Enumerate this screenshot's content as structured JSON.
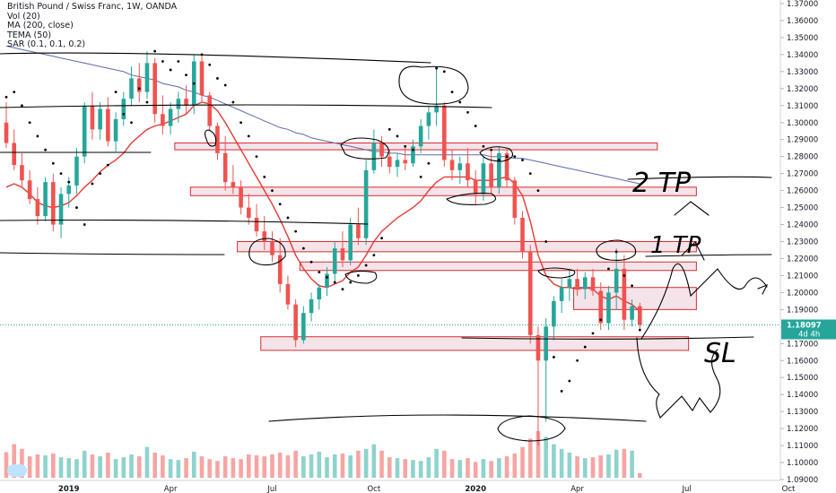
{
  "legend": {
    "title": "British Pound / Swiss Franc, 1W, OANDA",
    "vol": "Vol (20)",
    "ma": "MA (200, close)",
    "tema": "TEMA (50)",
    "sar": "SAR (0.1, 0.1, 0.2)"
  },
  "price_tag": {
    "value": "1.18097",
    "countdown": "4d 4h"
  },
  "annotations": {
    "tp2": "2 TP",
    "tp1": "1 TP",
    "sl": "SL"
  },
  "colors": {
    "up": "#26a69a",
    "down": "#ef5350",
    "vol_up": "#8ed3cc",
    "vol_down": "#f6a5a3",
    "ma": "#5b6bab",
    "tema": "#e53935",
    "zone_fill": "#f5e3ea",
    "zone_stroke": "#d32f2f",
    "price_tag": "#26a69a",
    "ink": "#000000"
  },
  "chart_data": {
    "type": "candlestick",
    "symbol": "GBPCHF",
    "timeframe": "1W",
    "y_axis": {
      "min": 1.09,
      "max": 1.37,
      "ticks": [
        "1.09000",
        "1.10000",
        "1.11000",
        "1.12000",
        "1.13000",
        "1.14000",
        "1.15000",
        "1.16000",
        "1.17000",
        "1.18000",
        "1.19000",
        "1.20000",
        "1.21000",
        "1.22000",
        "1.23000",
        "1.24000",
        "1.25000",
        "1.26000",
        "1.27000",
        "1.28000",
        "1.29000",
        "1.30000",
        "1.31000",
        "1.32000",
        "1.33000",
        "1.34000",
        "1.35000",
        "1.36000",
        "1.37000"
      ]
    },
    "x_axis": {
      "labels": [
        {
          "text": "2019",
          "bold": true,
          "index": 8
        },
        {
          "text": "Apr",
          "bold": false,
          "index": 21
        },
        {
          "text": "Jul",
          "bold": false,
          "index": 34
        },
        {
          "text": "Oct",
          "bold": false,
          "index": 47
        },
        {
          "text": "2020",
          "bold": true,
          "index": 60
        },
        {
          "text": "Apr",
          "bold": false,
          "index": 73
        },
        {
          "text": "Jul",
          "bold": false,
          "index": 87
        },
        {
          "text": "Oct",
          "bold": false,
          "index": 100
        }
      ]
    },
    "last_price": 1.18097,
    "candles": [
      [
        1.3,
        1.312,
        1.285,
        1.288
      ],
      [
        1.288,
        1.296,
        1.272,
        1.275
      ],
      [
        1.275,
        1.282,
        1.262,
        1.266
      ],
      [
        1.266,
        1.272,
        1.252,
        1.255
      ],
      [
        1.255,
        1.262,
        1.24,
        1.245
      ],
      [
        1.245,
        1.268,
        1.242,
        1.265
      ],
      [
        1.265,
        1.27,
        1.236,
        1.24
      ],
      [
        1.24,
        1.262,
        1.232,
        1.258
      ],
      [
        1.258,
        1.268,
        1.25,
        1.263
      ],
      [
        1.263,
        1.285,
        1.258,
        1.28
      ],
      [
        1.28,
        1.312,
        1.276,
        1.31
      ],
      [
        1.31,
        1.318,
        1.29,
        1.296
      ],
      [
        1.296,
        1.312,
        1.29,
        1.308
      ],
      [
        1.308,
        1.315,
        1.286,
        1.289
      ],
      [
        1.289,
        1.306,
        1.283,
        1.302
      ],
      [
        1.302,
        1.318,
        1.298,
        1.314
      ],
      [
        1.314,
        1.333,
        1.31,
        1.326
      ],
      [
        1.326,
        1.335,
        1.312,
        1.318
      ],
      [
        1.318,
        1.342,
        1.314,
        1.335
      ],
      [
        1.335,
        1.338,
        1.3,
        1.305
      ],
      [
        1.305,
        1.316,
        1.293,
        1.298
      ],
      [
        1.298,
        1.312,
        1.293,
        1.308
      ],
      [
        1.308,
        1.318,
        1.3,
        1.314
      ],
      [
        1.314,
        1.322,
        1.305,
        1.31
      ],
      [
        1.31,
        1.34,
        1.305,
        1.336
      ],
      [
        1.336,
        1.34,
        1.312,
        1.316
      ],
      [
        1.316,
        1.318,
        1.295,
        1.298
      ],
      [
        1.298,
        1.3,
        1.278,
        1.282
      ],
      [
        1.282,
        1.292,
        1.26,
        1.265
      ],
      [
        1.265,
        1.275,
        1.258,
        1.262
      ],
      [
        1.262,
        1.266,
        1.246,
        1.25
      ],
      [
        1.25,
        1.258,
        1.24,
        1.244
      ],
      [
        1.244,
        1.252,
        1.233,
        1.236
      ],
      [
        1.236,
        1.245,
        1.225,
        1.23
      ],
      [
        1.23,
        1.236,
        1.218,
        1.222
      ],
      [
        1.222,
        1.232,
        1.2,
        1.205
      ],
      [
        1.205,
        1.21,
        1.19,
        1.193
      ],
      [
        1.193,
        1.196,
        1.168,
        1.172
      ],
      [
        1.172,
        1.192,
        1.17,
        1.188
      ],
      [
        1.188,
        1.2,
        1.183,
        1.196
      ],
      [
        1.196,
        1.205,
        1.19,
        1.203
      ],
      [
        1.203,
        1.215,
        1.198,
        1.211
      ],
      [
        1.211,
        1.23,
        1.206,
        1.226
      ],
      [
        1.226,
        1.236,
        1.215,
        1.219
      ],
      [
        1.219,
        1.244,
        1.216,
        1.24
      ],
      [
        1.24,
        1.25,
        1.228,
        1.232
      ],
      [
        1.232,
        1.278,
        1.228,
        1.272
      ],
      [
        1.272,
        1.296,
        1.27,
        1.288
      ],
      [
        1.288,
        1.292,
        1.274,
        1.28
      ],
      [
        1.28,
        1.284,
        1.27,
        1.274
      ],
      [
        1.274,
        1.282,
        1.268,
        1.278
      ],
      [
        1.278,
        1.286,
        1.272,
        1.276
      ],
      [
        1.276,
        1.29,
        1.274,
        1.286
      ],
      [
        1.286,
        1.302,
        1.282,
        1.298
      ],
      [
        1.298,
        1.31,
        1.29,
        1.306
      ],
      [
        1.306,
        1.332,
        1.298,
        1.31
      ],
      [
        1.31,
        1.312,
        1.274,
        1.278
      ],
      [
        1.278,
        1.284,
        1.266,
        1.272
      ],
      [
        1.272,
        1.28,
        1.264,
        1.276
      ],
      [
        1.276,
        1.285,
        1.262,
        1.266
      ],
      [
        1.266,
        1.272,
        1.252,
        1.258
      ],
      [
        1.258,
        1.28,
        1.254,
        1.276
      ],
      [
        1.276,
        1.284,
        1.258,
        1.262
      ],
      [
        1.262,
        1.286,
        1.258,
        1.282
      ],
      [
        1.282,
        1.284,
        1.262,
        1.266
      ],
      [
        1.266,
        1.268,
        1.24,
        1.244
      ],
      [
        1.244,
        1.248,
        1.22,
        1.224
      ],
      [
        1.224,
        1.228,
        1.17,
        1.175
      ],
      [
        1.175,
        1.18,
        1.11,
        1.16
      ],
      [
        1.16,
        1.185,
        1.124,
        1.18
      ],
      [
        1.18,
        1.198,
        1.172,
        1.195
      ],
      [
        1.195,
        1.208,
        1.188,
        1.203
      ],
      [
        1.203,
        1.214,
        1.195,
        1.208
      ],
      [
        1.208,
        1.214,
        1.198,
        1.202
      ],
      [
        1.202,
        1.212,
        1.196,
        1.209
      ],
      [
        1.209,
        1.214,
        1.198,
        1.201
      ],
      [
        1.201,
        1.206,
        1.178,
        1.182
      ],
      [
        1.182,
        1.204,
        1.178,
        1.2
      ],
      [
        1.2,
        1.226,
        1.19,
        1.214
      ],
      [
        1.214,
        1.222,
        1.178,
        1.184
      ],
      [
        1.184,
        1.196,
        1.18,
        1.192
      ],
      [
        1.192,
        1.194,
        1.178,
        1.181
      ]
    ],
    "volume_up": [
      false,
      false,
      false,
      false,
      false,
      true,
      false,
      true,
      true,
      true,
      true,
      false,
      true,
      false,
      true,
      true,
      true,
      false,
      true,
      false,
      false,
      true,
      true,
      false,
      true,
      false,
      false,
      false,
      false,
      false,
      false,
      false,
      false,
      false,
      false,
      false,
      false,
      false,
      true,
      true,
      true,
      true,
      true,
      false,
      true,
      false,
      true,
      true,
      false,
      false,
      true,
      false,
      true,
      true,
      true,
      true,
      false,
      false,
      true,
      false,
      false,
      true,
      false,
      true,
      false,
      false,
      false,
      false,
      false,
      true,
      true,
      true,
      true,
      false,
      true,
      false,
      false,
      true,
      true,
      false,
      true,
      false
    ],
    "volume_values": [
      0.55,
      0.72,
      0.62,
      0.46,
      0.5,
      0.48,
      0.52,
      0.44,
      0.42,
      0.4,
      0.58,
      0.5,
      0.46,
      0.54,
      0.4,
      0.44,
      0.5,
      0.46,
      0.66,
      0.54,
      0.48,
      0.4,
      0.38,
      0.42,
      0.56,
      0.46,
      0.4,
      0.36,
      0.46,
      0.42,
      0.4,
      0.5,
      0.48,
      0.46,
      0.5,
      0.54,
      0.48,
      0.58,
      0.46,
      0.5,
      0.56,
      0.44,
      0.5,
      0.52,
      0.48,
      0.58,
      0.62,
      0.72,
      0.58,
      0.44,
      0.42,
      0.4,
      0.38,
      0.36,
      0.44,
      0.62,
      0.58,
      0.4,
      0.38,
      0.42,
      0.34,
      0.4,
      0.36,
      0.42,
      0.46,
      0.52,
      0.66,
      0.84,
      1.0,
      0.88,
      0.72,
      0.62,
      0.54,
      0.46,
      0.42,
      0.44,
      0.48,
      0.5,
      0.6,
      0.62,
      0.58,
      0.1
    ],
    "ma200": [
      1.345,
      1.344,
      1.343,
      1.342,
      1.341,
      1.34,
      1.339,
      1.338,
      1.337,
      1.336,
      1.335,
      1.334,
      1.333,
      1.332,
      1.331,
      1.33,
      1.328,
      1.327,
      1.326,
      1.325,
      1.323,
      1.322,
      1.321,
      1.319,
      1.318,
      1.316,
      1.315,
      1.313,
      1.311,
      1.309,
      1.307,
      1.305,
      1.303,
      1.301,
      1.299,
      1.297,
      1.296,
      1.294,
      1.293,
      1.291,
      1.29,
      1.289,
      1.288,
      1.287,
      1.286,
      1.285,
      1.284,
      1.283,
      1.283,
      1.282,
      1.282,
      1.281,
      1.281,
      1.281,
      1.281,
      1.281,
      1.281,
      1.281,
      1.281,
      1.281,
      1.281,
      1.281,
      1.28,
      1.28,
      1.28,
      1.279,
      1.279,
      1.278,
      1.277,
      1.276,
      1.275,
      1.274,
      1.273,
      1.272,
      1.271,
      1.27,
      1.269,
      1.268,
      1.267,
      1.266,
      1.265,
      1.264
    ],
    "ma_start_index": 0,
    "tema": [
      1.262,
      1.264,
      1.262,
      1.258,
      1.253,
      1.251,
      1.25,
      1.251,
      1.253,
      1.257,
      1.262,
      1.266,
      1.271,
      1.275,
      1.278,
      1.282,
      1.288,
      1.292,
      1.296,
      1.298,
      1.299,
      1.301,
      1.303,
      1.305,
      1.31,
      1.312,
      1.311,
      1.307,
      1.3,
      1.292,
      1.284,
      1.276,
      1.268,
      1.26,
      1.252,
      1.243,
      1.233,
      1.222,
      1.214,
      1.208,
      1.204,
      1.203,
      1.205,
      1.207,
      1.212,
      1.215,
      1.222,
      1.23,
      1.236,
      1.24,
      1.244,
      1.247,
      1.25,
      1.254,
      1.26,
      1.265,
      1.268,
      1.268,
      1.268,
      1.268,
      1.266,
      1.266,
      1.266,
      1.267,
      1.268,
      1.264,
      1.257,
      1.242,
      1.222,
      1.21,
      1.205,
      1.203,
      1.203,
      1.202,
      1.203,
      1.202,
      1.198,
      1.196,
      1.198,
      1.195,
      1.193,
      1.189
    ],
    "sar": [
      1.315,
      1.318,
      1.31,
      1.3,
      1.292,
      1.284,
      1.276,
      1.27,
      1.265,
      1.25,
      1.24,
      1.264,
      1.27,
      1.275,
      1.318,
      1.305,
      1.3,
      1.32,
      1.312,
      1.342,
      1.336,
      1.331,
      1.336,
      1.328,
      1.323,
      1.34,
      1.334,
      1.326,
      1.322,
      1.312,
      1.3,
      1.292,
      1.28,
      1.268,
      1.26,
      1.252,
      1.244,
      1.236,
      1.226,
      1.218,
      1.212,
      1.209,
      1.206,
      1.202,
      1.206,
      1.21,
      1.216,
      1.222,
      1.232,
      1.296,
      1.292,
      1.286,
      1.284,
      1.268,
      1.276,
      1.332,
      1.33,
      1.318,
      1.312,
      1.306,
      1.298,
      1.286,
      1.284,
      1.278,
      1.28,
      1.28,
      1.278,
      1.27,
      1.26,
      1.23,
      1.162,
      1.142,
      1.148,
      1.16,
      1.168,
      1.176,
      1.184,
      1.214,
      1.224,
      1.21,
      1.204,
      1.178
    ],
    "sr_zones": [
      {
        "i0": 22,
        "i1": 83,
        "top": 1.288,
        "bottom": 1.284
      },
      {
        "i0": 24,
        "i1": 88,
        "top": 1.262,
        "bottom": 1.257
      },
      {
        "i0": 30,
        "i1": 88,
        "top": 1.23,
        "bottom": 1.224
      },
      {
        "i0": 38,
        "i1": 88,
        "top": 1.218,
        "bottom": 1.213
      },
      {
        "i0": 73,
        "i1": 88,
        "top": 1.203,
        "bottom": 1.19
      },
      {
        "i0": 33,
        "i1": 87,
        "top": 1.174,
        "bottom": 1.166
      }
    ]
  }
}
